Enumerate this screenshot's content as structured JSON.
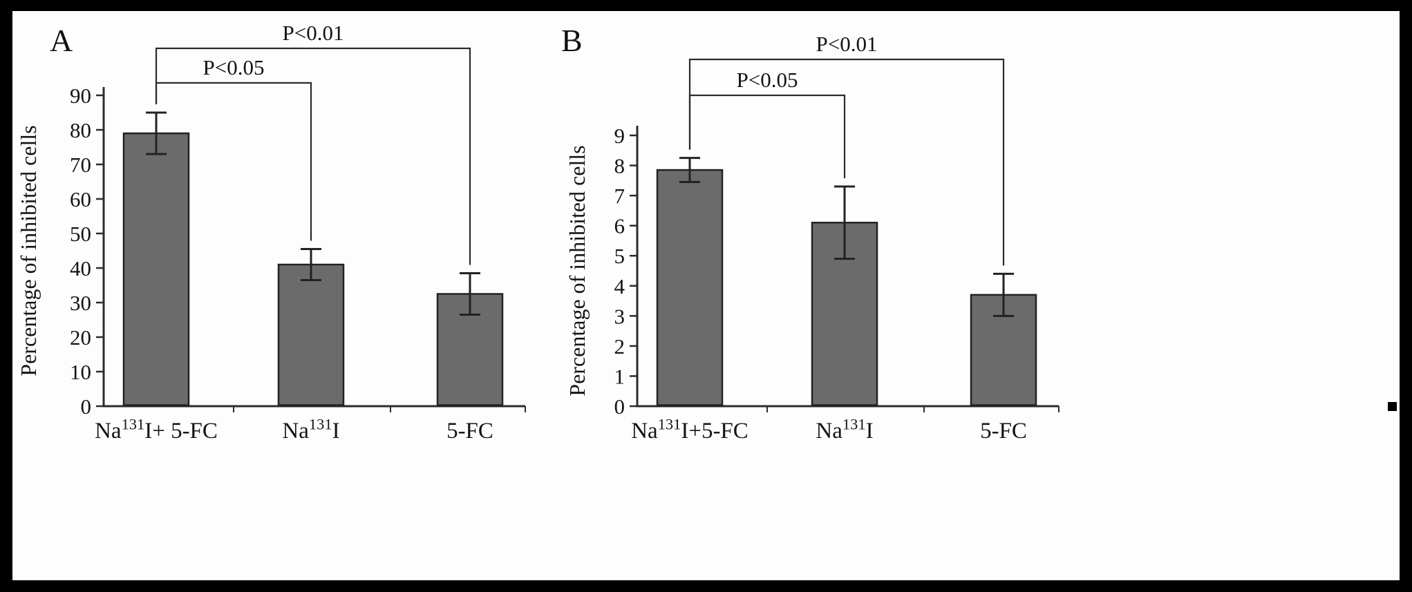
{
  "figure": {
    "background": "#000000",
    "panel_background": "#fdfdfd",
    "bar_fill": "#6b6b6b",
    "bar_stroke": "#222222",
    "line_color": "#2b2b2b",
    "text_color": "#141414"
  },
  "panels": [
    {
      "label": "A"
    },
    {
      "label": "B"
    }
  ],
  "chart_data": [
    {
      "type": "bar",
      "panel": "A",
      "ylabel": "Percentage of inhibited cells",
      "xlabel": "",
      "ylim": [
        0,
        90
      ],
      "ytick_step": 10,
      "yticks": [
        0,
        10,
        20,
        30,
        40,
        50,
        60,
        70,
        80,
        90
      ],
      "categories": [
        "Na^{131}I+ 5-FC",
        "Na^{131}I",
        "5-FC"
      ],
      "values": [
        79,
        41,
        32.5
      ],
      "errors": [
        6,
        4.5,
        6
      ],
      "grid": false,
      "legend": false,
      "annotations": [
        {
          "label": "P<0.05",
          "from": 0,
          "to": 1
        },
        {
          "label": "P<0.01",
          "from": 0,
          "to": 2
        }
      ]
    },
    {
      "type": "bar",
      "panel": "B",
      "ylabel": "Percentage of inhibited cells",
      "xlabel": "",
      "ylim": [
        0,
        9
      ],
      "ytick_step": 1,
      "yticks": [
        0,
        1,
        2,
        3,
        4,
        5,
        6,
        7,
        8,
        9
      ],
      "categories": [
        "Na^{131}I+5-FC",
        "Na^{131}I",
        "5-FC"
      ],
      "values": [
        7.85,
        6.1,
        3.7
      ],
      "errors": [
        0.4,
        1.2,
        0.7
      ],
      "grid": false,
      "legend": false,
      "annotations": [
        {
          "label": "P<0.05",
          "from": 0,
          "to": 1
        },
        {
          "label": "P<0.01",
          "from": 0,
          "to": 2
        }
      ]
    }
  ]
}
